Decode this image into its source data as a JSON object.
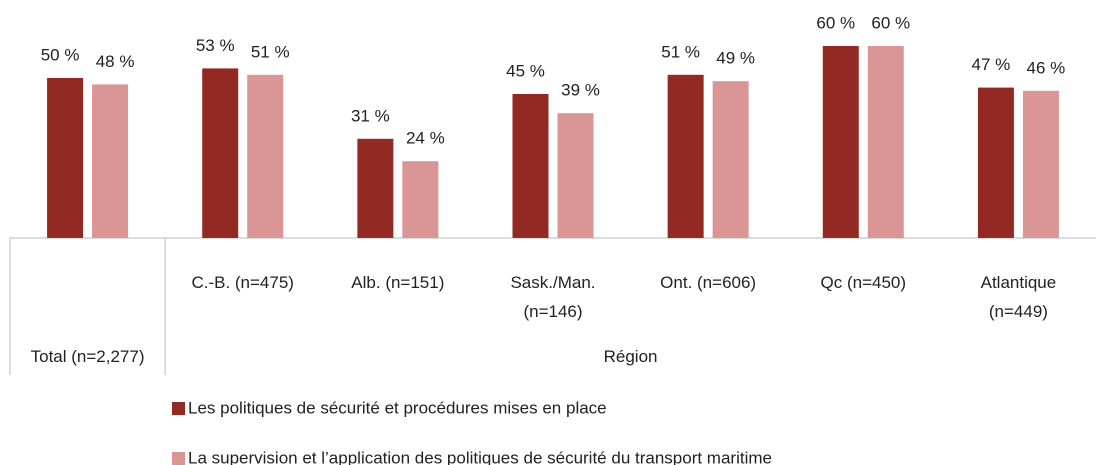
{
  "chart_data": {
    "type": "bar",
    "categories": [
      "Total (n=2,277)",
      "C.-B. (n=475)",
      "Alb. (n=151)",
      "Sask./Man. (n=146)",
      "Ont. (n=606)",
      "Qc (n=450)",
      "Atlantique (n=449)"
    ],
    "group_label": "Région",
    "series": [
      {
        "name": "Les politiques de sécurité et procédures mises en place",
        "color": "#922a23",
        "values": [
          50,
          53,
          31,
          45,
          51,
          60,
          47
        ],
        "value_labels": [
          "50 %",
          "53 %",
          "31 %",
          "45 %",
          "51 %",
          "60 %",
          "47 %"
        ]
      },
      {
        "name": "La supervision et l’application des politiques de sécurité du transport maritime",
        "color": "#d99694",
        "values": [
          48,
          51,
          24,
          39,
          49,
          60,
          46
        ],
        "value_labels": [
          "48 %",
          "51 %",
          "24 %",
          "39 %",
          "49 %",
          "60 %",
          "46 %"
        ]
      }
    ]
  }
}
